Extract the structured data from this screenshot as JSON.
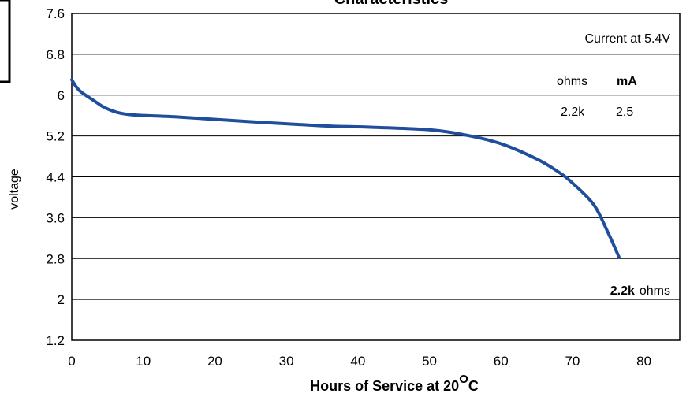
{
  "chart_data": {
    "type": "line",
    "title": "Characteristics",
    "xlabel_text": "Hours of Service at 20",
    "xlabel_sup": "O",
    "xlabel_unit": "C",
    "ylabel": "voltage",
    "xlim": [
      0,
      85
    ],
    "ylim": [
      1.2,
      7.6
    ],
    "xticks": [
      "0",
      "10",
      "20",
      "30",
      "40",
      "50",
      "60",
      "70",
      "80"
    ],
    "yticks": [
      "1.2",
      "2",
      "2.8",
      "3.6",
      "4.4",
      "5.2",
      "6",
      "6.8",
      "7.6"
    ],
    "grid": "horizontal",
    "line_color": "#1f4e9c",
    "series": [
      {
        "x": [
          0,
          1,
          3,
          5,
          8,
          15,
          25,
          35,
          42,
          50,
          55,
          60,
          65,
          68,
          70,
          73,
          75,
          76.5
        ],
        "y": [
          6.3,
          6.1,
          5.9,
          5.73,
          5.62,
          5.57,
          5.48,
          5.4,
          5.37,
          5.32,
          5.22,
          5.05,
          4.75,
          4.5,
          4.28,
          3.85,
          3.3,
          2.83
        ]
      }
    ],
    "annotations": {
      "current_label": "Current at 5.4V",
      "col_ohms": "ohms",
      "col_ma": "mA",
      "row_ohms": "2.2k",
      "row_ma": "2.5",
      "curve_value": "2.2k",
      "curve_unit": "ohms"
    }
  }
}
